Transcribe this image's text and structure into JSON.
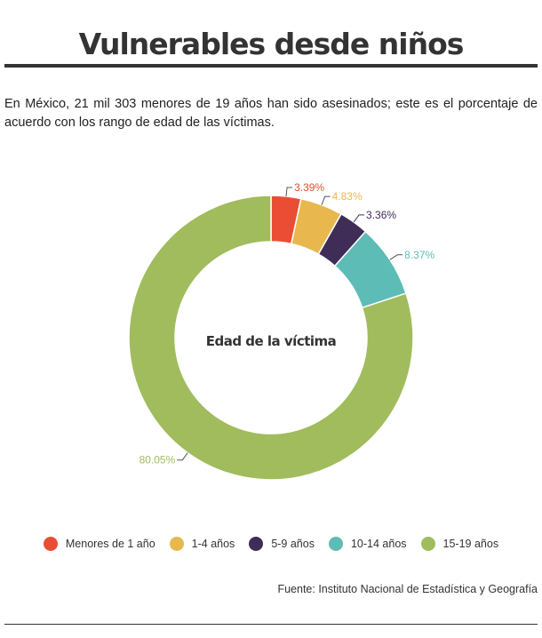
{
  "header": {
    "title": "Vulnerables desde niños",
    "intro": "En México, 21 mil 303 menores de 19 años han sido asesinados; este es el porcentaje de acuerdo con los rango de edad de las víctimas."
  },
  "footer": {
    "source": "Fuente: Instituto Nacional de Estadística y Geografía"
  },
  "chart_data": {
    "type": "pie",
    "center_label": "Edad de la víctima",
    "categories": [
      "Menores de 1 año",
      "1-4 años",
      "5-9 años",
      "10-14 años",
      "15-19 años"
    ],
    "values": [
      3.39,
      4.83,
      3.36,
      8.37,
      80.05
    ],
    "labels": [
      "3.39%",
      "4.83%",
      "3.36%",
      "8.37%",
      "80.05%"
    ],
    "colors": [
      "#e94e35",
      "#e8b84f",
      "#3f2c57",
      "#5dbcb6",
      "#a0bc5d"
    ],
    "legend_position": "bottom"
  }
}
